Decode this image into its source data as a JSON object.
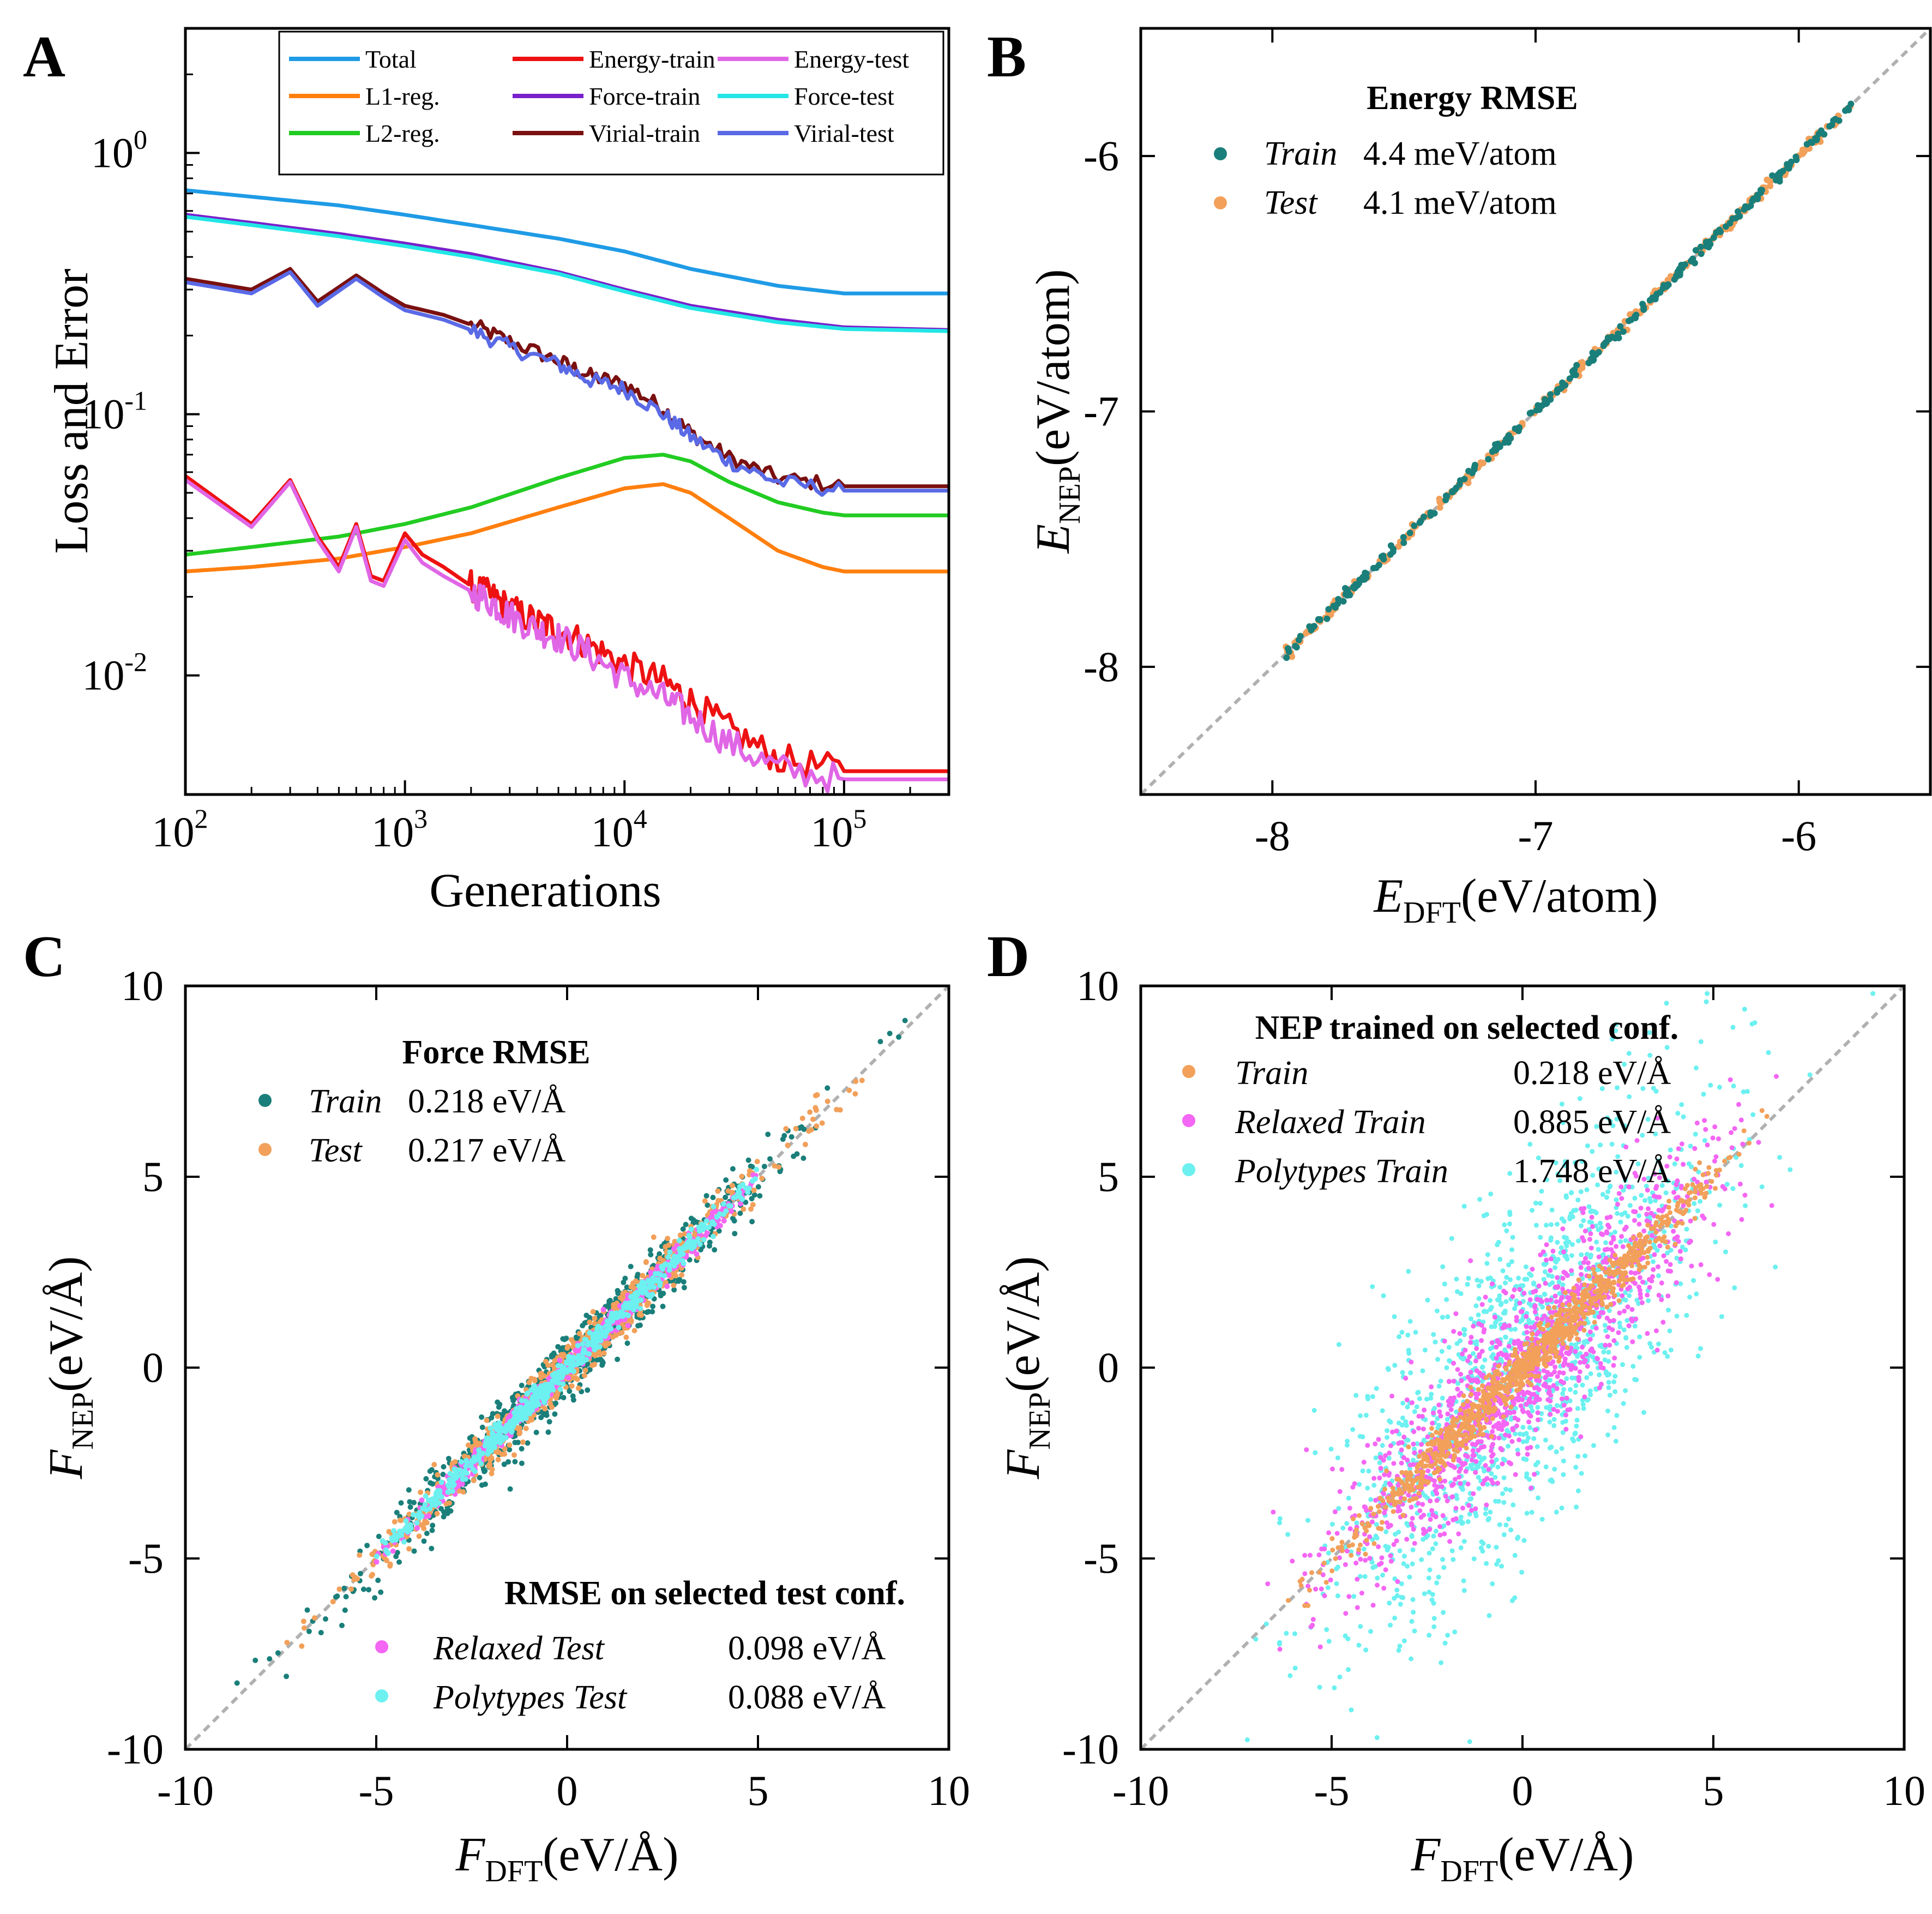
{
  "chart_data": [
    {
      "panel": "A",
      "type": "line",
      "xscale": "log",
      "yscale": "log",
      "xlim": [
        100,
        300000
      ],
      "ylim": [
        0.0035,
        3
      ],
      "xlabel": "Generations",
      "ylabel": "Loss and Error",
      "xticks": [
        {
          "v": 100,
          "mant": "10",
          "exp": "2"
        },
        {
          "v": 1000,
          "mant": "10",
          "exp": "3"
        },
        {
          "v": 10000,
          "mant": "10",
          "exp": "4"
        },
        {
          "v": 100000,
          "mant": "10",
          "exp": "5"
        }
      ],
      "yticks": [
        {
          "v": 1,
          "mant": "10",
          "exp": "0"
        },
        {
          "v": 0.1,
          "mant": "10",
          "exp": "-1"
        },
        {
          "v": 0.01,
          "mant": "10",
          "exp": "-2"
        }
      ],
      "legend_position": "top-right",
      "series": [
        {
          "name": "Total",
          "color": "#1f9be6",
          "x": [
            100,
            200,
            500,
            1000,
            2000,
            5000,
            10000,
            20000,
            50000,
            100000,
            300000
          ],
          "y": [
            0.72,
            0.68,
            0.63,
            0.58,
            0.53,
            0.47,
            0.42,
            0.36,
            0.31,
            0.29,
            0.29
          ]
        },
        {
          "name": "L1-reg.",
          "color": "#ff7f0e",
          "x": [
            100,
            200,
            500,
            1000,
            2000,
            5000,
            10000,
            15000,
            20000,
            30000,
            50000,
            80000,
            100000,
            300000
          ],
          "y": [
            0.025,
            0.026,
            0.028,
            0.031,
            0.035,
            0.044,
            0.052,
            0.054,
            0.05,
            0.04,
            0.03,
            0.026,
            0.025,
            0.025
          ]
        },
        {
          "name": "L2-reg.",
          "color": "#22cc22",
          "x": [
            100,
            200,
            500,
            1000,
            2000,
            5000,
            10000,
            15000,
            20000,
            30000,
            50000,
            80000,
            100000,
            300000
          ],
          "y": [
            0.029,
            0.031,
            0.034,
            0.038,
            0.044,
            0.057,
            0.068,
            0.07,
            0.066,
            0.055,
            0.046,
            0.042,
            0.041,
            0.041
          ]
        },
        {
          "name": "Energy-train",
          "color": "#ee1111",
          "x": [
            100,
            200,
            300,
            400,
            500,
            600,
            700,
            800,
            1000,
            1200,
            1500,
            2000,
            2500,
            3000,
            4000,
            5000,
            7000,
            10000,
            15000,
            20000,
            30000,
            50000,
            100000,
            300000
          ],
          "y": [
            0.058,
            0.038,
            0.056,
            0.034,
            0.026,
            0.038,
            0.024,
            0.023,
            0.035,
            0.029,
            0.026,
            0.022,
            0.02,
            0.018,
            0.016,
            0.015,
            0.013,
            0.011,
            0.0095,
            0.008,
            0.0062,
            0.0048,
            0.0043,
            0.0043
          ]
        },
        {
          "name": "Force-train",
          "color": "#7a1fcc",
          "x": [
            100,
            200,
            500,
            1000,
            2000,
            5000,
            10000,
            20000,
            50000,
            100000,
            300000
          ],
          "y": [
            0.58,
            0.54,
            0.49,
            0.45,
            0.41,
            0.35,
            0.3,
            0.26,
            0.23,
            0.215,
            0.21
          ]
        },
        {
          "name": "Virial-train",
          "color": "#7a1010",
          "x": [
            100,
            200,
            300,
            400,
            600,
            800,
            1000,
            1500,
            2000,
            3000,
            5000,
            7000,
            10000,
            15000,
            20000,
            30000,
            50000,
            100000,
            300000
          ],
          "y": [
            0.33,
            0.3,
            0.36,
            0.27,
            0.34,
            0.29,
            0.26,
            0.24,
            0.22,
            0.19,
            0.16,
            0.14,
            0.13,
            0.105,
            0.085,
            0.068,
            0.057,
            0.053,
            0.053
          ]
        },
        {
          "name": "Energy-test",
          "color": "#e066e6",
          "x": [
            100,
            200,
            300,
            400,
            500,
            600,
            700,
            800,
            1000,
            1200,
            1500,
            2000,
            2500,
            3000,
            4000,
            5000,
            7000,
            10000,
            15000,
            20000,
            30000,
            50000,
            100000,
            300000
          ],
          "y": [
            0.056,
            0.037,
            0.055,
            0.033,
            0.025,
            0.037,
            0.023,
            0.022,
            0.033,
            0.027,
            0.024,
            0.021,
            0.019,
            0.017,
            0.015,
            0.014,
            0.012,
            0.0098,
            0.0082,
            0.007,
            0.0055,
            0.0044,
            0.004,
            0.004
          ]
        },
        {
          "name": "Force-test",
          "color": "#22e6e6",
          "x": [
            100,
            200,
            500,
            1000,
            2000,
            5000,
            10000,
            20000,
            50000,
            100000,
            300000
          ],
          "y": [
            0.57,
            0.53,
            0.48,
            0.44,
            0.4,
            0.345,
            0.295,
            0.255,
            0.225,
            0.212,
            0.208
          ]
        },
        {
          "name": "Virial-test",
          "color": "#5a6ae6",
          "x": [
            100,
            200,
            300,
            400,
            600,
            800,
            1000,
            1500,
            2000,
            3000,
            5000,
            7000,
            10000,
            15000,
            20000,
            30000,
            50000,
            100000,
            300000
          ],
          "y": [
            0.32,
            0.29,
            0.35,
            0.26,
            0.33,
            0.28,
            0.25,
            0.23,
            0.21,
            0.18,
            0.155,
            0.135,
            0.125,
            0.1,
            0.082,
            0.066,
            0.055,
            0.051,
            0.051
          ]
        }
      ]
    },
    {
      "panel": "B",
      "type": "scatter",
      "xlim": [
        -8.5,
        -5.5
      ],
      "ylim": [
        -8.5,
        -5.5
      ],
      "xticks": [
        -8,
        -7,
        -6
      ],
      "yticks": [
        -8,
        -7,
        -6
      ],
      "xlabel": "(eV/atom)",
      "xlabel_sym": "E",
      "xlabel_sub": "DFT",
      "ylabel": "(eV/atom)",
      "ylabel_sym": "E",
      "ylabel_sub": "NEP",
      "legend_title": "Energy RMSE",
      "legend_position": "top-left",
      "series": [
        {
          "name": "Train",
          "rmse": "4.4 meV/atom",
          "color": "#1a7f7a",
          "range": [
            -7.95,
            -5.8
          ]
        },
        {
          "name": "Test",
          "rmse": "4.1 meV/atom",
          "color": "#f2a05a",
          "range": [
            -7.95,
            -5.8
          ]
        }
      ]
    },
    {
      "panel": "C",
      "type": "scatter",
      "xlim": [
        -10,
        10
      ],
      "ylim": [
        -10,
        10
      ],
      "xticks": [
        -10,
        -5,
        0,
        5,
        10
      ],
      "yticks": [
        -10,
        -5,
        0,
        5,
        10
      ],
      "xlabel": "(eV/Å)",
      "xlabel_sym": "F",
      "xlabel_sub": "DFT",
      "ylabel": "(eV/Å)",
      "ylabel_sym": "F",
      "ylabel_sub": "NEP",
      "legend_title": "Force RMSE",
      "legend_position": "top-left",
      "legend2_title": "RMSE on selected test conf.",
      "legend2_position": "bottom-right",
      "series": [
        {
          "name": "Train",
          "rmse": "0.218 eV/Å",
          "color": "#1a7f7a",
          "spread": 0.42,
          "range": [
            -8.8,
            9
          ]
        },
        {
          "name": "Test",
          "rmse": "0.217 eV/Å",
          "color": "#f2a05a",
          "spread": 0.3,
          "range": [
            -8.6,
            8.4
          ]
        },
        {
          "name": "Relaxed Test",
          "rmse": "0.098 eV/Å",
          "color": "#f466f4",
          "spread": 0.16,
          "range": [
            -5,
            5
          ]
        },
        {
          "name": "Polytypes Test",
          "rmse": "0.088 eV/Å",
          "color": "#6cf0f0",
          "spread": 0.14,
          "range": [
            -5,
            5
          ]
        }
      ]
    },
    {
      "panel": "D",
      "type": "scatter",
      "xlim": [
        -10,
        10
      ],
      "ylim": [
        -10,
        10
      ],
      "xticks": [
        -10,
        -5,
        0,
        5,
        10
      ],
      "yticks": [
        -10,
        -5,
        0,
        5,
        10
      ],
      "xlabel": "(eV/Å)",
      "xlabel_sym": "F",
      "xlabel_sub": "DFT",
      "ylabel": "(eV/Å)",
      "ylabel_sym": "F",
      "ylabel_sub": "NEP",
      "legend_title": "NEP trained on selected conf.",
      "legend_position": "top-left",
      "series": [
        {
          "name": "Polytypes Train",
          "rmse": "1.748 eV/Å",
          "color": "#6cf0f0",
          "spread": 2.2,
          "range": [
            -9.5,
            9.5
          ]
        },
        {
          "name": "Relaxed Train",
          "rmse": "0.885 eV/Å",
          "color": "#f466f4",
          "spread": 1.1,
          "range": [
            -7,
            7
          ]
        },
        {
          "name": "Train",
          "rmse": "0.218 eV/Å",
          "color": "#f2a05a",
          "spread": 0.3,
          "range": [
            -8.6,
            8.4
          ]
        }
      ]
    }
  ]
}
